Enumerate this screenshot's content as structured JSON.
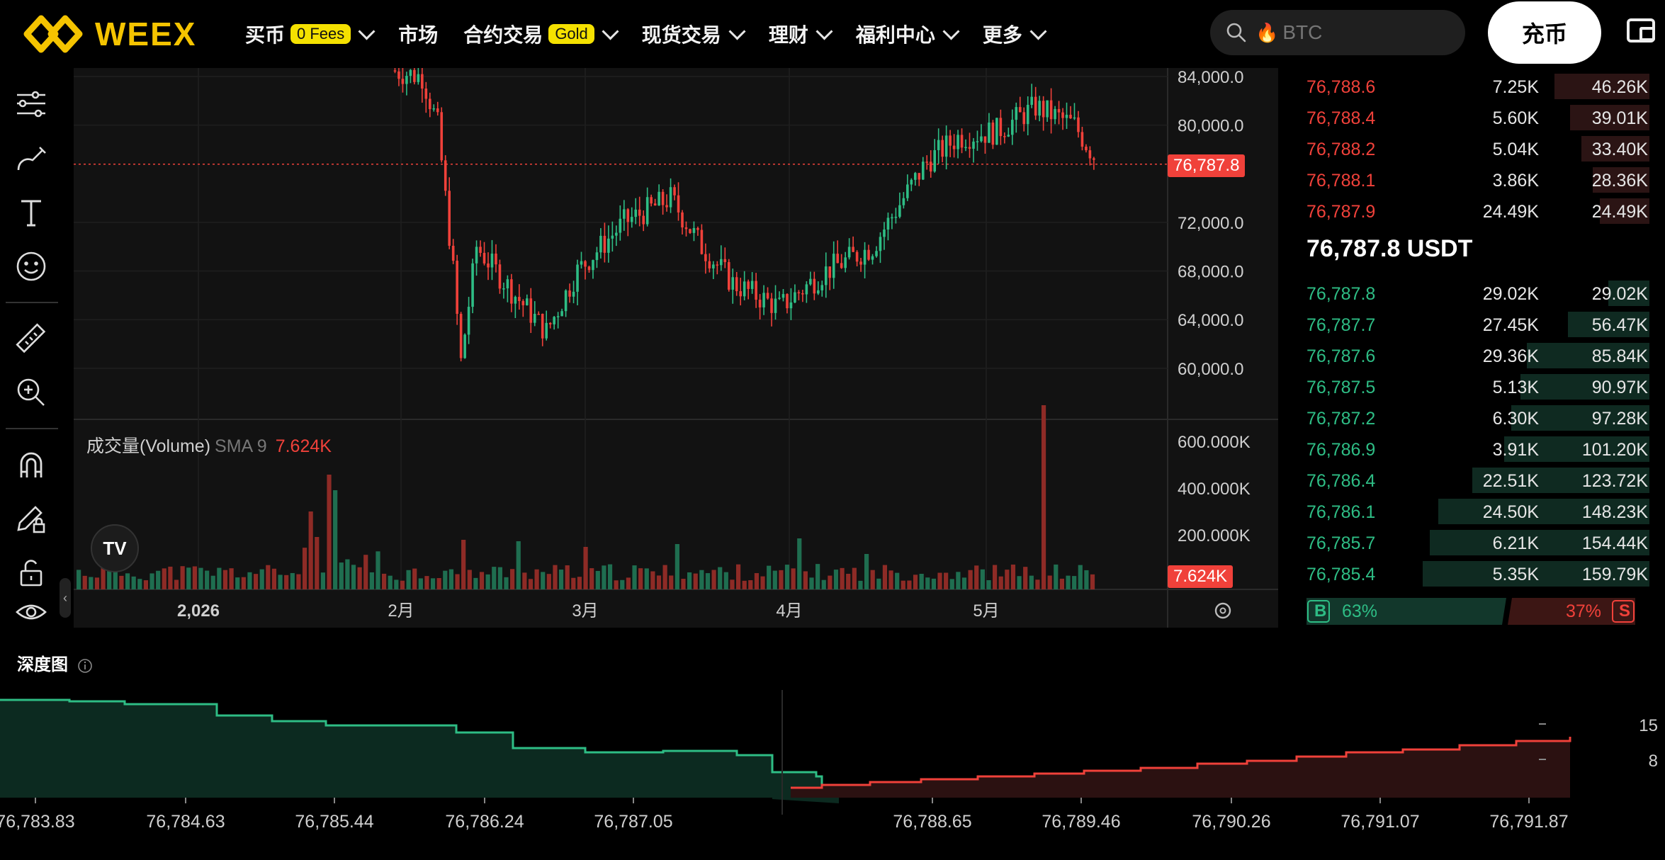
{
  "nav": {
    "logo": "WEEX",
    "items": [
      {
        "label": "买币",
        "badge": "0 Fees",
        "dropdown": true
      },
      {
        "label": "市场",
        "badge": "",
        "dropdown": false
      },
      {
        "label": "合约交易",
        "badge": "Gold",
        "dropdown": true
      },
      {
        "label": "现货交易",
        "badge": "",
        "dropdown": true
      },
      {
        "label": "理财",
        "badge": "",
        "dropdown": true
      },
      {
        "label": "福利中心",
        "badge": "",
        "dropdown": true
      },
      {
        "label": "更多",
        "badge": "",
        "dropdown": true
      }
    ],
    "search_placeholder": "BTC",
    "deposit": "充币"
  },
  "chart": {
    "y_ticks": [
      "84,000.0",
      "80,000.0",
      "72,000.0",
      "68,000.0",
      "64,000.0",
      "60,000.0"
    ],
    "current_price": "76,787.8",
    "volume_label": "成交量(Volume)",
    "volume_sma": "SMA 9",
    "volume_value": "7.624K",
    "volume_ticks": [
      "600.000K",
      "400.000K",
      "200.000K"
    ],
    "volume_tag": "7.624K",
    "x_ticks": [
      "2,026",
      "2月",
      "3月",
      "4月",
      "5月"
    ]
  },
  "chart_data": {
    "type": "candlestick",
    "y_axis_ticks": [
      60000,
      64000,
      68000,
      72000,
      80000,
      84000
    ],
    "last_price": 76787.8,
    "volume_last": "7.624K"
  },
  "orderbook": {
    "asks": [
      {
        "price": "76,788.6",
        "amount": "7.25K",
        "total": "46.26K",
        "depth": 0.42
      },
      {
        "price": "76,788.4",
        "amount": "5.60K",
        "total": "39.01K",
        "depth": 0.35
      },
      {
        "price": "76,788.2",
        "amount": "5.04K",
        "total": "33.40K",
        "depth": 0.3
      },
      {
        "price": "76,788.1",
        "amount": "3.86K",
        "total": "28.36K",
        "depth": 0.25
      },
      {
        "price": "76,787.9",
        "amount": "24.49K",
        "total": "24.49K",
        "depth": 0.22
      }
    ],
    "mid": "76,787.8 USDT",
    "bids": [
      {
        "price": "76,787.8",
        "amount": "29.02K",
        "total": "29.02K",
        "depth": 0.18
      },
      {
        "price": "76,787.7",
        "amount": "27.45K",
        "total": "56.47K",
        "depth": 0.36
      },
      {
        "price": "76,787.6",
        "amount": "29.36K",
        "total": "85.84K",
        "depth": 0.54
      },
      {
        "price": "76,787.5",
        "amount": "5.13K",
        "total": "90.97K",
        "depth": 0.57
      },
      {
        "price": "76,787.2",
        "amount": "6.30K",
        "total": "97.28K",
        "depth": 0.61
      },
      {
        "price": "76,786.9",
        "amount": "3.91K",
        "total": "101.20K",
        "depth": 0.64
      },
      {
        "price": "76,786.4",
        "amount": "22.51K",
        "total": "123.72K",
        "depth": 0.78
      },
      {
        "price": "76,786.1",
        "amount": "24.50K",
        "total": "148.23K",
        "depth": 0.93
      },
      {
        "price": "76,785.7",
        "amount": "6.21K",
        "total": "154.44K",
        "depth": 0.97
      },
      {
        "price": "76,785.4",
        "amount": "5.35K",
        "total": "159.79K",
        "depth": 1.0
      }
    ],
    "buy_label": "B",
    "buy_pct": "63%",
    "sell_pct": "37%",
    "sell_label": "S"
  },
  "depth": {
    "title": "深度图",
    "x_ticks": [
      "76,783.83",
      "76,784.63",
      "76,785.44",
      "76,786.24",
      "76,787.05",
      "76,788.65",
      "76,789.46",
      "76,790.26",
      "76,791.07",
      "76,791.87"
    ],
    "y_ticks": [
      "15",
      "8"
    ]
  },
  "colors": {
    "up": "#2ebd85",
    "down": "#f0413a",
    "accent": "#f5c400"
  }
}
